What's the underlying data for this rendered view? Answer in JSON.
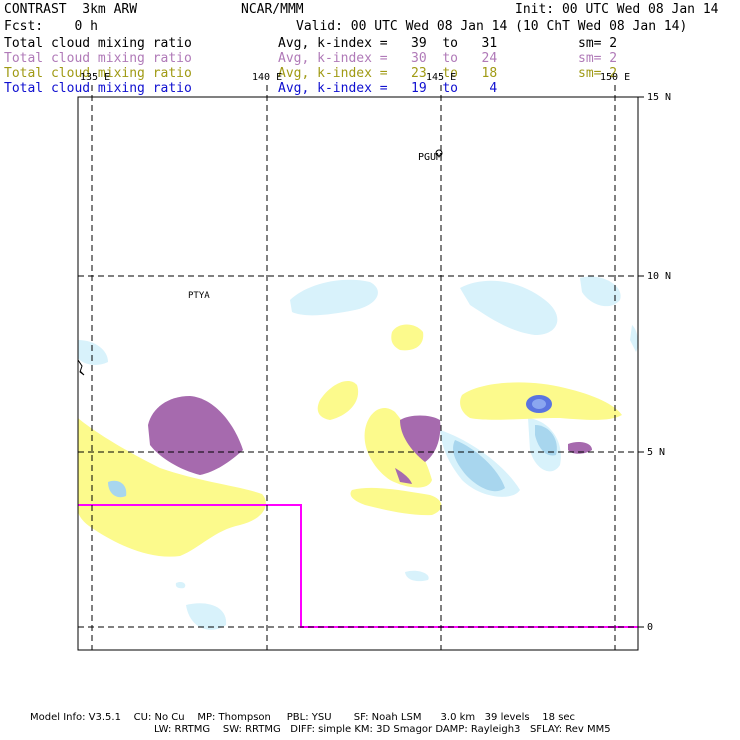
{
  "header": {
    "title": "CONTRAST  3km ARW",
    "center": "NCAR/MMM",
    "init": "Init: 00 UTC Wed 08 Jan 14",
    "fcst": "Fcst:    0 h",
    "valid": "Valid: 00 UTC Wed 08 Jan 14 (10 ChT Wed 08 Jan 14)"
  },
  "legend": [
    {
      "field": "Total cloud mixing ratio",
      "range": "Avg, k-index =   39  to   31",
      "sm": "sm= 2",
      "color": "#000000"
    },
    {
      "field": "Total cloud mixing ratio",
      "range": "Avg, k-index =   30  to   24",
      "sm": "sm= 2",
      "color": "#b07ab8"
    },
    {
      "field": "Total cloud mixing ratio",
      "range": "Avg, k-index =   23  to   18",
      "sm": "sm= 2",
      "color": "#a09a14"
    },
    {
      "field": "Total cloud mixing ratio",
      "range": "Avg, k-index =   19  to    4",
      "sm": "",
      "color": "#1010d0"
    }
  ],
  "map": {
    "lon_labels": [
      "135 E",
      "140 E",
      "145 E",
      "150 E"
    ],
    "lat_labels": [
      "15 N",
      "10 N",
      "5 N",
      "0"
    ],
    "places": [
      "PGUM",
      "PTYA"
    ],
    "colors": {
      "light_blue": "#d8f2fb",
      "mid_blue": "#a8d6ee",
      "deep_blue": "#5a74e0",
      "yellow": "#fcfa8c",
      "purple": "#a66aae",
      "magenta": "#ff00ff"
    }
  },
  "footer": {
    "line1": "Model Info: V3.5.1    CU: No Cu    MP: Thompson     PBL: YSU       SF: Noah LSM      3.0 km   39 levels    18 sec",
    "line2": "LW: RRTMG    SW: RRTMG   DIFF: simple KM: 3D Smagor DAMP: Rayleigh3   SFLAY: Rev MM5"
  }
}
